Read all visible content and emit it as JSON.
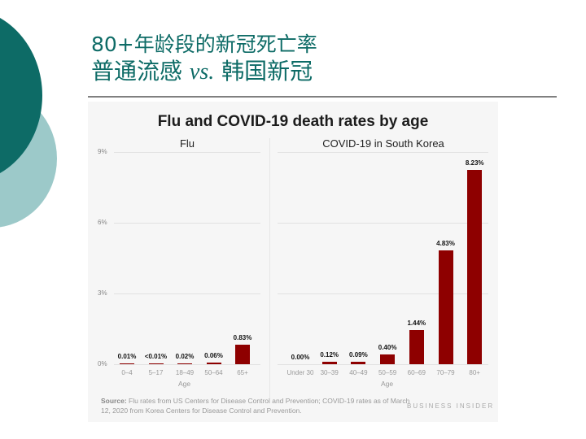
{
  "slide": {
    "title_line1": "80+年龄段的新冠死亡率",
    "title_line2_a": "普通流感 ",
    "title_line2_vs": "vs.",
    "title_line2_b": " 韩国新冠",
    "colors": {
      "teal_dark": "#0d6b66",
      "teal_light": "#9cc9c9",
      "bar": "#8e0000"
    }
  },
  "chart_data": {
    "type": "bar",
    "title": "Flu and COVID-19 death rates by age",
    "ylabel": "",
    "yticks": [
      "0%",
      "3%",
      "6%",
      "9%"
    ],
    "ylim": [
      0,
      9
    ],
    "grid": true,
    "panels": [
      {
        "title": "Flu",
        "xlabel": "Age",
        "categories": [
          "0–4",
          "5–17",
          "18–49",
          "50–64",
          "65+"
        ],
        "labels": [
          "0.01%",
          "<0.01%",
          "0.02%",
          "0.06%",
          "0.83%"
        ],
        "values": [
          0.01,
          0.005,
          0.02,
          0.06,
          0.83
        ]
      },
      {
        "title": "COVID-19 in South Korea",
        "xlabel": "Age",
        "categories": [
          "Under 30",
          "30–39",
          "40–49",
          "50–59",
          "60–69",
          "70–79",
          "80+"
        ],
        "labels": [
          "0.00%",
          "0.12%",
          "0.09%",
          "0.40%",
          "1.44%",
          "4.83%",
          "8.23%"
        ],
        "values": [
          0.0,
          0.12,
          0.09,
          0.4,
          1.44,
          4.83,
          8.23
        ]
      }
    ],
    "source_label": "Source:",
    "source_text": " Flu rates from US Centers for Disease Control and Prevention; COVID-19 rates as of March 12, 2020 from Korea Centers for Disease Control and Prevention.",
    "brand": "BUSINESS INSIDER"
  }
}
